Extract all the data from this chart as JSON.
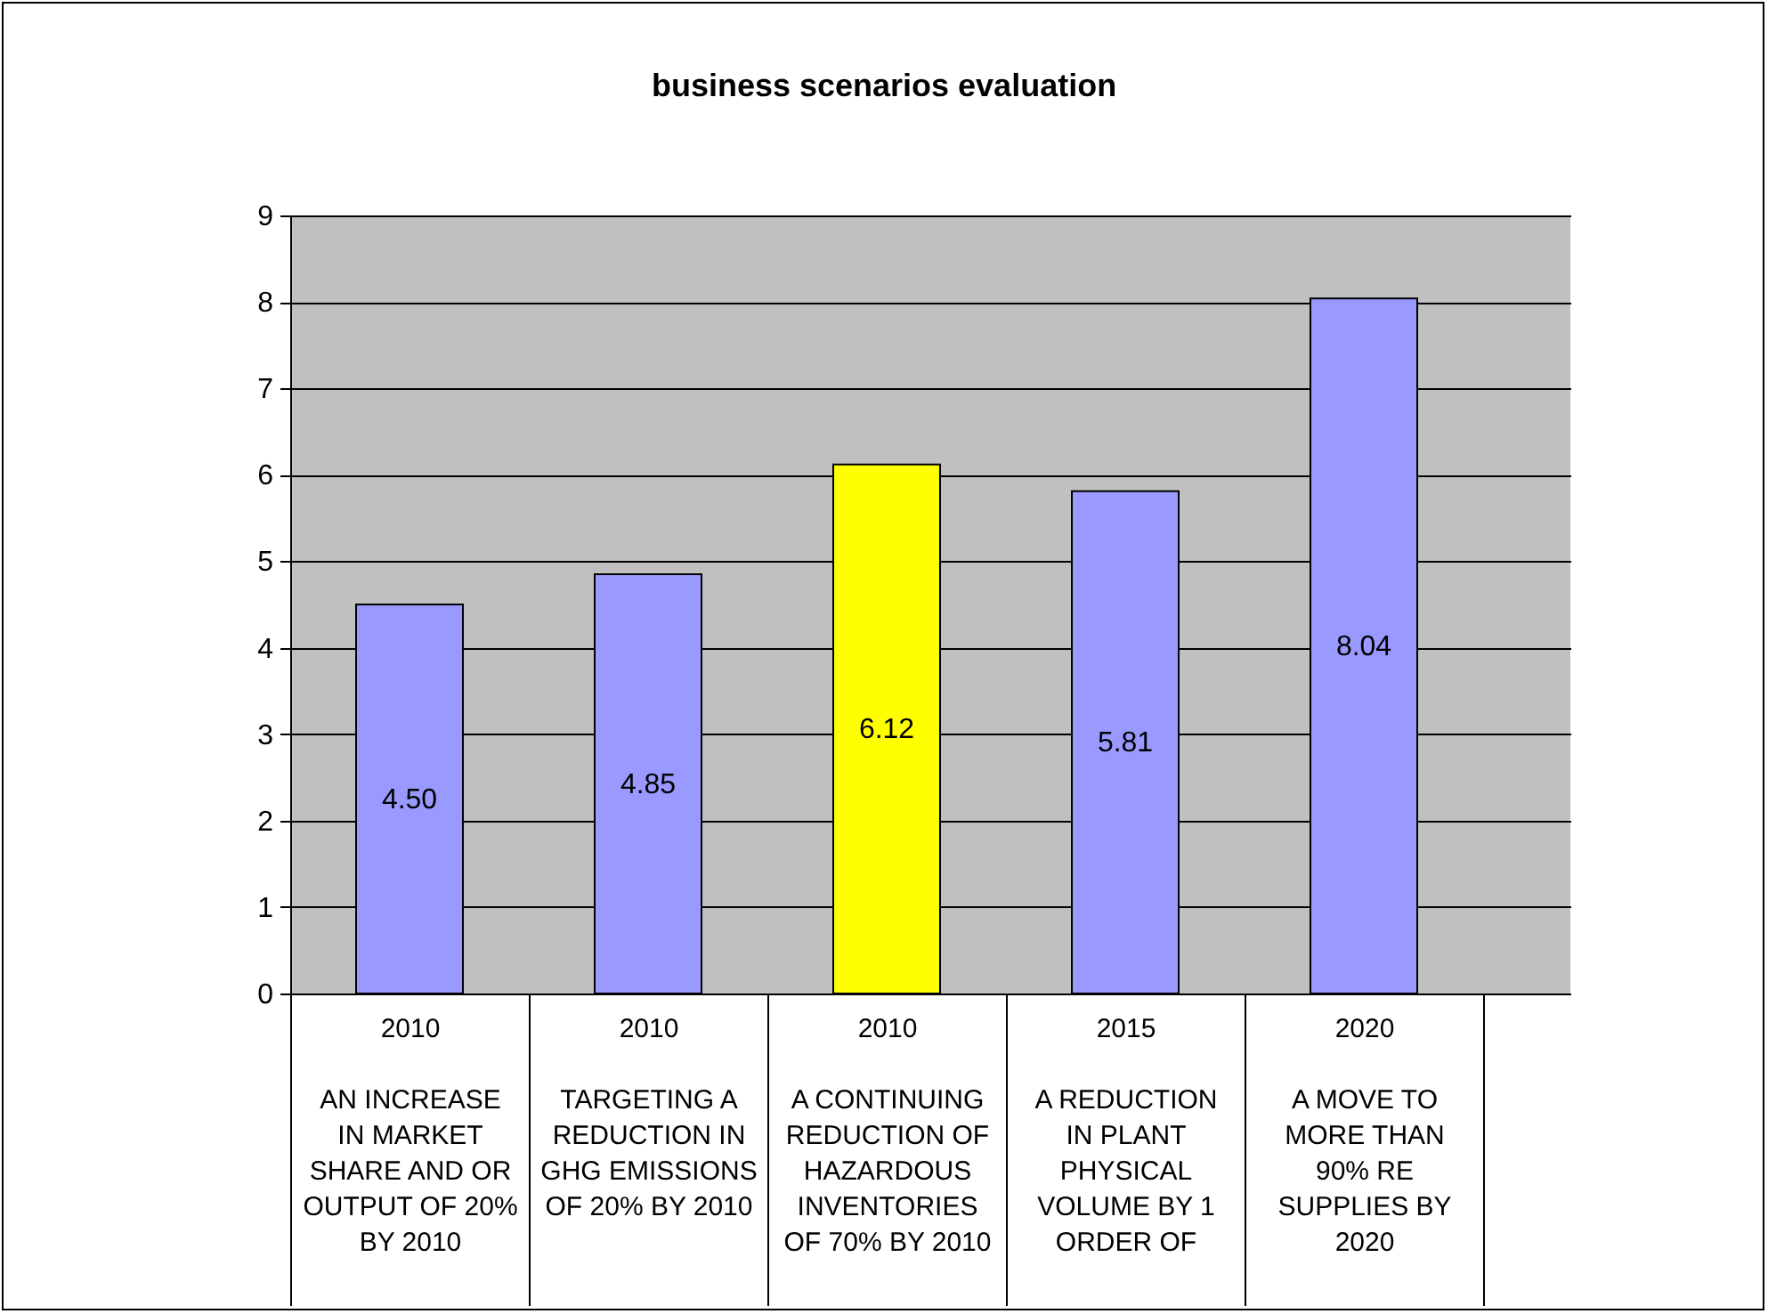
{
  "chart_data": {
    "type": "bar",
    "title": "business scenarios evaluation",
    "categories": [
      "2010\nAN INCREASE IN MARKET SHARE AND OR OUTPUT OF 20% BY 2010",
      "2010\nTARGETING A REDUCTION IN GHG EMISSIONS OF 20% BY 2010",
      "2010\nA CONTINUING REDUCTION OF HAZARDOUS INVENTORIES OF 70% BY 2010",
      "2015\nA REDUCTION IN PLANT PHYSICAL VOLUME BY 1 ORDER OF",
      "2020\nA MOVE TO MORE THAN 90% RE SUPPLIES BY 2020"
    ],
    "values": [
      4.5,
      4.85,
      6.12,
      5.81,
      8.04
    ],
    "value_labels": [
      "4.50",
      "4.85",
      "6.12",
      "5.81",
      "8.04"
    ],
    "colors": [
      "#9999ff",
      "#9999ff",
      "#ffff00",
      "#9999ff",
      "#9999ff"
    ],
    "ylim": [
      0,
      9
    ],
    "yticks": [
      0,
      1,
      2,
      3,
      4,
      5,
      6,
      7,
      8,
      9
    ],
    "grid": "y"
  }
}
